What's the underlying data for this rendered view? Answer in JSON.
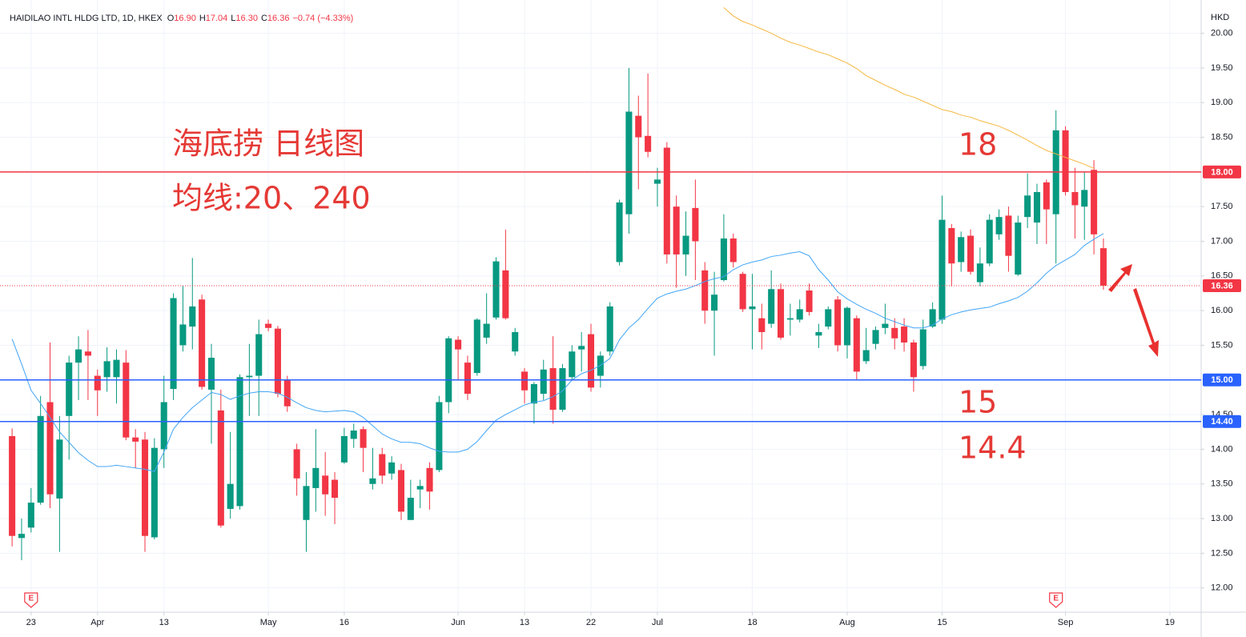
{
  "chart_data": {
    "type": "candlestick",
    "title": "HAIDILAO INTL HLDG LTD, 1D, HKEX",
    "ohlc_legend": [
      {
        "key": "O",
        "value": "16.90"
      },
      {
        "key": "H",
        "value": "17.04"
      },
      {
        "key": "L",
        "value": "16.30"
      },
      {
        "key": "C",
        "value": "16.36"
      }
    ],
    "change": "−0.74 (−4.33%)",
    "y_unit": "HKD",
    "up_color": "#089981",
    "down_color": "#f23645",
    "grid": true,
    "xlim": [
      -0.6,
      125.3
    ],
    "ylim": [
      11.65,
      20.48
    ],
    "xticks": [
      {
        "value": 2,
        "label": "23"
      },
      {
        "value": 9,
        "label": "Apr"
      },
      {
        "value": 16,
        "label": "13"
      },
      {
        "value": 27,
        "label": "May"
      },
      {
        "value": 35,
        "label": "16"
      },
      {
        "value": 47,
        "label": "Jun"
      },
      {
        "value": 54,
        "label": "13"
      },
      {
        "value": 61,
        "label": "22"
      },
      {
        "value": 68,
        "label": "Jul"
      },
      {
        "value": 78,
        "label": "18"
      },
      {
        "value": 88,
        "label": "Aug"
      },
      {
        "value": 98,
        "label": "15"
      },
      {
        "value": 111,
        "label": "Sep"
      },
      {
        "value": 122,
        "label": "19"
      }
    ],
    "yticks": [
      {
        "value": 12,
        "label": "12.00"
      },
      {
        "value": 12.5,
        "label": "12.50"
      },
      {
        "value": 13,
        "label": "13.00"
      },
      {
        "value": 13.5,
        "label": "13.50"
      },
      {
        "value": 14,
        "label": "14.00"
      },
      {
        "value": 14.5,
        "label": "14.50"
      },
      {
        "value": 15,
        "label": "15.00"
      },
      {
        "value": 15.5,
        "label": "15.50"
      },
      {
        "value": 16,
        "label": "16.00"
      },
      {
        "value": 16.5,
        "label": "16.50"
      },
      {
        "value": 17,
        "label": "17.00"
      },
      {
        "value": 17.5,
        "label": "17.50"
      },
      {
        "value": 18,
        "label": "18.00"
      },
      {
        "value": 18.5,
        "label": "18.50"
      },
      {
        "value": 19,
        "label": "19.00"
      },
      {
        "value": 19.5,
        "label": "19.50"
      },
      {
        "value": 20,
        "label": "20.00"
      }
    ],
    "open": [
      14.19,
      12.72,
      12.87,
      13.23,
      14.68,
      13.29,
      14.48,
      15.25,
      15.41,
      15.06,
      15.04,
      15.04,
      15.25,
      14.17,
      14.14,
      12.73,
      14.0,
      14.87,
      15.5,
      15.77,
      16.16,
      14.86,
      14.56,
      13.14,
      13.18,
      15.04,
      15.06,
      15.81,
      15.74,
      15.0,
      14.0,
      12.98,
      13.44,
      13.62,
      13.56,
      13.81,
      14.15,
      14.29,
      13.5,
      13.93,
      13.65,
      13.7,
      12.98,
      13.42,
      13.73,
      13.7,
      14.68,
      15.58,
      15.25,
      15.1,
      15.61,
      15.9,
      16.58,
      15.41,
      15.12,
      14.66,
      14.8,
      15.17,
      14.57,
      15.04,
      15.44,
      15.66,
      15.06,
      15.41,
      16.7,
      17.39,
      18.81,
      18.52,
      17.83,
      18.35,
      17.5,
      16.81,
      17.48,
      16.58,
      16.0,
      16.44,
      17.04,
      16.53,
      16.02,
      15.89,
      15.81,
      16.31,
      15.87,
      15.87,
      16.29,
      15.64,
      15.77,
      16.16,
      15.5,
      15.89,
      15.27,
      15.52,
      15.75,
      15.75,
      15.77,
      15.54,
      15.2,
      15.77,
      15.87,
      17.19,
      16.7,
      17.08,
      16.41,
      16.68,
      17.1,
      17.37,
      16.52,
      17.35,
      17.27,
      17.85,
      17.39,
      18.6,
      17.71,
      17.5,
      18.03,
      16.9
    ],
    "high": [
      14.3,
      13.0,
      13.44,
      14.77,
      15.54,
      14.48,
      15.35,
      15.63,
      15.72,
      15.15,
      15.47,
      15.44,
      15.43,
      14.29,
      14.25,
      14.16,
      15.06,
      16.25,
      16.36,
      16.76,
      16.23,
      15.52,
      14.86,
      14.25,
      15.08,
      15.52,
      15.87,
      15.87,
      15.78,
      15.06,
      14.08,
      13.67,
      14.29,
      13.96,
      13.67,
      14.31,
      14.37,
      14.33,
      14.02,
      14.02,
      13.9,
      13.79,
      13.56,
      13.56,
      13.81,
      14.77,
      15.63,
      15.63,
      15.35,
      15.89,
      16.25,
      16.77,
      17.17,
      15.75,
      15.17,
      14.97,
      15.29,
      15.63,
      15.23,
      15.5,
      15.69,
      15.81,
      15.41,
      16.12,
      17.6,
      19.5,
      19.1,
      19.42,
      18.06,
      18.43,
      17.66,
      17.43,
      17.89,
      16.7,
      16.56,
      17.39,
      17.11,
      16.56,
      16.53,
      16.1,
      16.58,
      16.39,
      16.1,
      16.16,
      16.39,
      15.81,
      16.06,
      16.21,
      16.06,
      15.93,
      15.75,
      15.77,
      16.1,
      15.89,
      15.89,
      15.58,
      15.87,
      16.12,
      17.66,
      17.25,
      17.14,
      17.17,
      16.91,
      17.39,
      17.46,
      17.5,
      17.37,
      17.98,
      17.83,
      17.89,
      18.89,
      18.66,
      18.06,
      18.0,
      18.17,
      17.04
    ],
    "low": [
      12.6,
      12.4,
      12.8,
      13.2,
      13.15,
      12.52,
      13.85,
      14.71,
      14.71,
      14.48,
      14.83,
      14.66,
      14.13,
      13.73,
      12.52,
      12.7,
      13.73,
      14.71,
      15.41,
      15.44,
      14.86,
      14.08,
      12.87,
      13.0,
      13.13,
      14.48,
      14.48,
      15.7,
      14.75,
      14.54,
      13.33,
      12.52,
      13.1,
      13.04,
      12.92,
      13.79,
      14.02,
      13.67,
      13.42,
      13.5,
      13.56,
      12.98,
      12.98,
      13.15,
      13.13,
      13.67,
      14.52,
      15.0,
      14.71,
      15.06,
      15.52,
      15.87,
      15.87,
      15.35,
      14.66,
      14.37,
      14.71,
      14.37,
      14.54,
      15.0,
      15.12,
      14.83,
      14.89,
      15.35,
      16.65,
      17.11,
      17.75,
      18.21,
      17.5,
      16.68,
      16.33,
      16.5,
      16.44,
      15.81,
      15.35,
      16.42,
      16.62,
      15.98,
      15.44,
      15.44,
      15.75,
      15.58,
      15.64,
      15.83,
      15.93,
      15.46,
      15.73,
      15.41,
      15.31,
      15.0,
      15.23,
      15.44,
      15.66,
      15.44,
      15.41,
      14.83,
      15.15,
      15.75,
      15.81,
      16.35,
      16.56,
      16.52,
      16.35,
      16.64,
      17.02,
      16.56,
      16.5,
      17.19,
      16.96,
      16.96,
      16.68,
      17.66,
      17.04,
      17.02,
      16.81,
      16.3
    ],
    "close": [
      12.75,
      12.78,
      13.23,
      14.48,
      13.35,
      14.14,
      15.25,
      15.44,
      15.35,
      14.85,
      15.27,
      15.29,
      14.17,
      14.11,
      12.75,
      14.02,
      14.68,
      16.18,
      15.8,
      16.06,
      14.9,
      15.32,
      12.9,
      13.5,
      15.04,
      15.06,
      15.66,
      15.75,
      14.8,
      14.62,
      13.58,
      13.47,
      13.73,
      13.35,
      13.3,
      14.19,
      14.27,
      14.02,
      13.58,
      13.62,
      13.81,
      13.1,
      13.3,
      13.47,
      13.39,
      14.68,
      15.6,
      15.44,
      14.8,
      15.87,
      15.81,
      16.71,
      15.89,
      15.69,
      14.85,
      14.94,
      15.15,
      14.57,
      15.17,
      15.41,
      15.49,
      14.89,
      15.35,
      16.06,
      17.56,
      18.87,
      18.5,
      18.29,
      17.89,
      16.81,
      16.81,
      17.08,
      17.0,
      16.0,
      16.23,
      17.04,
      16.7,
      16.02,
      16.06,
      15.69,
      16.31,
      15.61,
      15.89,
      16.02,
      15.98,
      15.69,
      16.02,
      15.5,
      16.04,
      15.12,
      15.43,
      15.72,
      15.81,
      15.6,
      15.54,
      15.04,
      15.73,
      16.02,
      17.31,
      16.68,
      17.06,
      16.56,
      16.68,
      17.31,
      17.35,
      16.79,
      17.27,
      17.66,
      17.71,
      17.46,
      18.6,
      17.71,
      17.52,
      17.74,
      17.1,
      16.36
    ],
    "lines": [
      {
        "color": "#42a5f5",
        "values": [
          15.59,
          15.23,
          14.85,
          14.66,
          14.46,
          14.25,
          14.1,
          13.95,
          13.84,
          13.75,
          13.75,
          13.77,
          13.75,
          13.73,
          13.71,
          13.68,
          13.96,
          14.29,
          14.46,
          14.6,
          14.71,
          14.82,
          14.79,
          14.72,
          14.77,
          14.81,
          14.83,
          14.83,
          14.81,
          14.75,
          14.67,
          14.6,
          14.56,
          14.54,
          14.55,
          14.56,
          14.54,
          14.46,
          14.34,
          14.22,
          14.15,
          14.1,
          14.1,
          14.08,
          14.02,
          13.97,
          13.96,
          13.96,
          14.0,
          14.11,
          14.27,
          14.42,
          14.5,
          14.57,
          14.64,
          14.68,
          14.7,
          14.76,
          14.84,
          15.0,
          15.09,
          15.14,
          15.21,
          15.31,
          15.58,
          15.75,
          15.87,
          16.03,
          16.18,
          16.24,
          16.28,
          16.31,
          16.36,
          16.42,
          16.46,
          16.49,
          16.59,
          16.66,
          16.7,
          16.73,
          16.78,
          16.8,
          16.83,
          16.85,
          16.79,
          16.59,
          16.44,
          16.27,
          16.17,
          16.09,
          16.02,
          15.96,
          15.89,
          15.84,
          15.79,
          15.75,
          15.75,
          15.79,
          15.88,
          15.94,
          15.98,
          16.01,
          16.03,
          16.05,
          16.1,
          16.14,
          16.19,
          16.28,
          16.4,
          16.54,
          16.65,
          16.73,
          16.81,
          16.94,
          17.03,
          17.11
        ]
      },
      {
        "color": "#f5b841",
        "values": [
          null,
          null,
          null,
          null,
          null,
          null,
          null,
          null,
          null,
          null,
          null,
          null,
          null,
          null,
          null,
          null,
          null,
          null,
          null,
          null,
          null,
          null,
          null,
          null,
          null,
          null,
          null,
          null,
          null,
          null,
          null,
          null,
          null,
          null,
          null,
          null,
          null,
          null,
          null,
          null,
          null,
          null,
          null,
          null,
          null,
          null,
          null,
          null,
          null,
          null,
          null,
          null,
          null,
          null,
          null,
          null,
          null,
          null,
          null,
          null,
          null,
          null,
          null,
          null,
          null,
          null,
          null,
          null,
          null,
          null,
          null,
          null,
          null,
          null,
          null,
          20.37,
          20.25,
          20.17,
          20.12,
          20.06,
          20.0,
          19.93,
          19.87,
          19.83,
          19.78,
          19.73,
          19.69,
          19.63,
          19.57,
          19.49,
          19.39,
          19.32,
          19.25,
          19.19,
          19.12,
          19.08,
          19.02,
          18.96,
          18.9,
          18.87,
          18.82,
          18.79,
          18.74,
          18.7,
          18.66,
          18.6,
          18.53,
          18.46,
          18.38,
          18.31,
          18.26,
          18.21,
          18.16,
          18.11,
          18.05,
          null
        ]
      }
    ],
    "price_lines": [
      {
        "value": 18,
        "label": "18.00",
        "color": "#f23645",
        "style": "solid"
      },
      {
        "value": 15,
        "label": "15.00",
        "color": "#2962ff",
        "style": "solid"
      },
      {
        "value": 14.4,
        "label": "14.40",
        "color": "#2962ff",
        "style": "solid"
      },
      {
        "value": 16.36,
        "label": "16.36",
        "color": "#f23645",
        "style": "dotted"
      }
    ],
    "events": [
      {
        "index": 2,
        "label": "E"
      },
      {
        "index": 110,
        "label": "E"
      }
    ],
    "annotations": [
      "海底捞 日线图",
      "均线:20、240",
      "18",
      "15",
      "14.4"
    ]
  }
}
